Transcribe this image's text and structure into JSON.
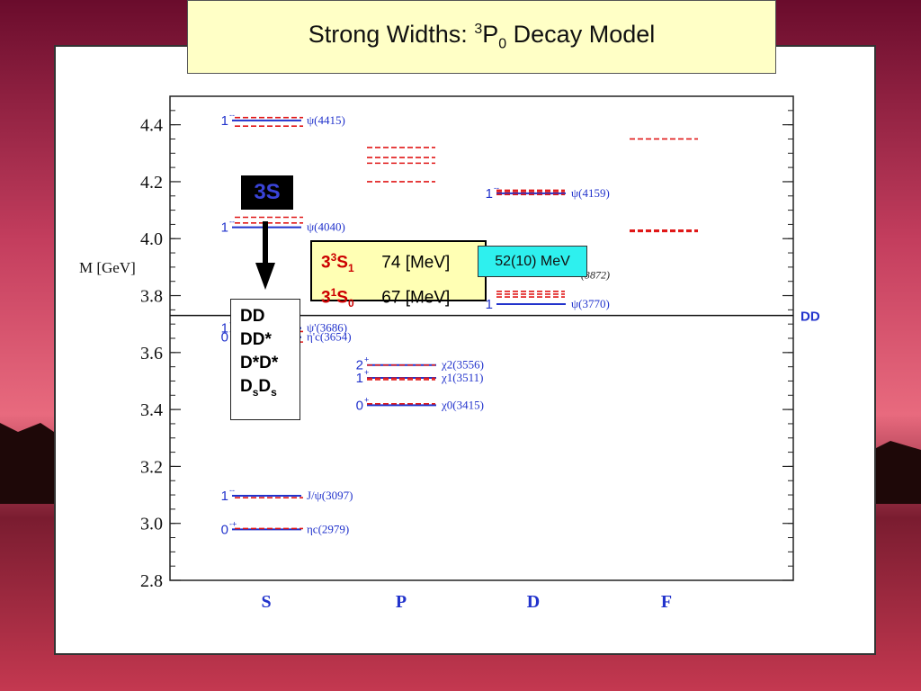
{
  "title": {
    "main": "Strong Widths:",
    "sup": "3",
    "letter": "P",
    "sub": "0",
    "rest": "Decay Model"
  },
  "colors": {
    "experiment": "#2233cc",
    "model": "#e01818",
    "threshold": "#111111",
    "title_bg": "#ffffc6",
    "width_box_bg": "#ffffb4",
    "measured_bg": "#2ef0ee"
  },
  "chart_data": {
    "type": "level_diagram",
    "ylabel": "M [GeV]",
    "ylim": [
      2.8,
      4.5
    ],
    "yticks": [
      "4.4",
      "4.2",
      "4.0",
      "3.8",
      "3.6",
      "3.4",
      "3.2",
      "3.0",
      "2.8"
    ],
    "ytick_values": [
      4.4,
      4.2,
      4.0,
      3.8,
      3.6,
      3.4,
      3.2,
      3.0,
      2.8
    ],
    "columns": [
      "S",
      "P",
      "D",
      "F"
    ],
    "threshold": {
      "mass": 3.73,
      "label": "DD"
    },
    "observed": [
      {
        "col": "S",
        "mass": 4.415,
        "jpc": "1",
        "pc": "--",
        "label": "ψ(4415)"
      },
      {
        "col": "S",
        "mass": 4.04,
        "jpc": "1",
        "pc": "--",
        "label": "ψ(4040)"
      },
      {
        "col": "S",
        "mass": 3.686,
        "jpc": "1",
        "pc": "--",
        "label": "ψ'(3686)"
      },
      {
        "col": "S",
        "mass": 3.654,
        "jpc": "0",
        "pc": "-+",
        "label": "η'c(3654)"
      },
      {
        "col": "S",
        "mass": 3.097,
        "jpc": "1",
        "pc": "--",
        "label": "J/ψ(3097)"
      },
      {
        "col": "S",
        "mass": 2.979,
        "jpc": "0",
        "pc": "-+",
        "label": "ηc(2979)"
      },
      {
        "col": "P",
        "mass": 3.556,
        "jpc": "2",
        "pc": "+",
        "label": "χ2(3556)"
      },
      {
        "col": "P",
        "mass": 3.511,
        "jpc": "1",
        "pc": "+",
        "label": "χ1(3511)"
      },
      {
        "col": "P",
        "mass": 3.415,
        "jpc": "0",
        "pc": "+",
        "label": "χ0(3415)"
      },
      {
        "col": "D",
        "mass": 4.159,
        "jpc": "1",
        "pc": "--",
        "label": "ψ(4159)"
      },
      {
        "col": "D",
        "mass": 3.77,
        "jpc": "1",
        "pc": "",
        "label": "ψ(3770)"
      }
    ],
    "partial_label": {
      "col": "D",
      "mass": 3.872,
      "text": "(3872)"
    },
    "predicted": [
      {
        "col": "S",
        "masses": [
          4.425,
          4.395
        ]
      },
      {
        "col": "S",
        "masses": [
          4.075,
          4.055
        ]
      },
      {
        "col": "S",
        "masses": [
          3.674,
          3.637
        ]
      },
      {
        "col": "S",
        "masses": [
          3.09
        ]
      },
      {
        "col": "S",
        "masses": [
          2.982
        ]
      },
      {
        "col": "P",
        "masses": [
          4.32,
          4.285,
          4.265,
          4.2
        ]
      },
      {
        "col": "P",
        "masses": [
          3.556,
          3.51,
          3.505
        ]
      },
      {
        "col": "P",
        "masses": [
          3.42
        ]
      },
      {
        "col": "D",
        "masses": [
          4.17,
          4.165,
          4.155
        ]
      },
      {
        "col": "D",
        "masses": [
          3.815,
          3.805,
          3.795
        ]
      },
      {
        "col": "F",
        "masses": [
          4.35
        ]
      },
      {
        "col": "F",
        "masses": [
          4.03,
          4.025
        ]
      }
    ]
  },
  "annotations": {
    "badge_3s": "3S",
    "decay_channels": [
      "DD",
      "DD*",
      "D*D*",
      "DsDs"
    ],
    "widths": [
      {
        "n": "3",
        "sup": "3",
        "l": "S",
        "sub": "1",
        "value": "74 [MeV]"
      },
      {
        "n": "3",
        "sup": "1",
        "l": "S",
        "sub": "0",
        "value": "67 [MeV]"
      }
    ],
    "measured": "52(10) MeV"
  }
}
